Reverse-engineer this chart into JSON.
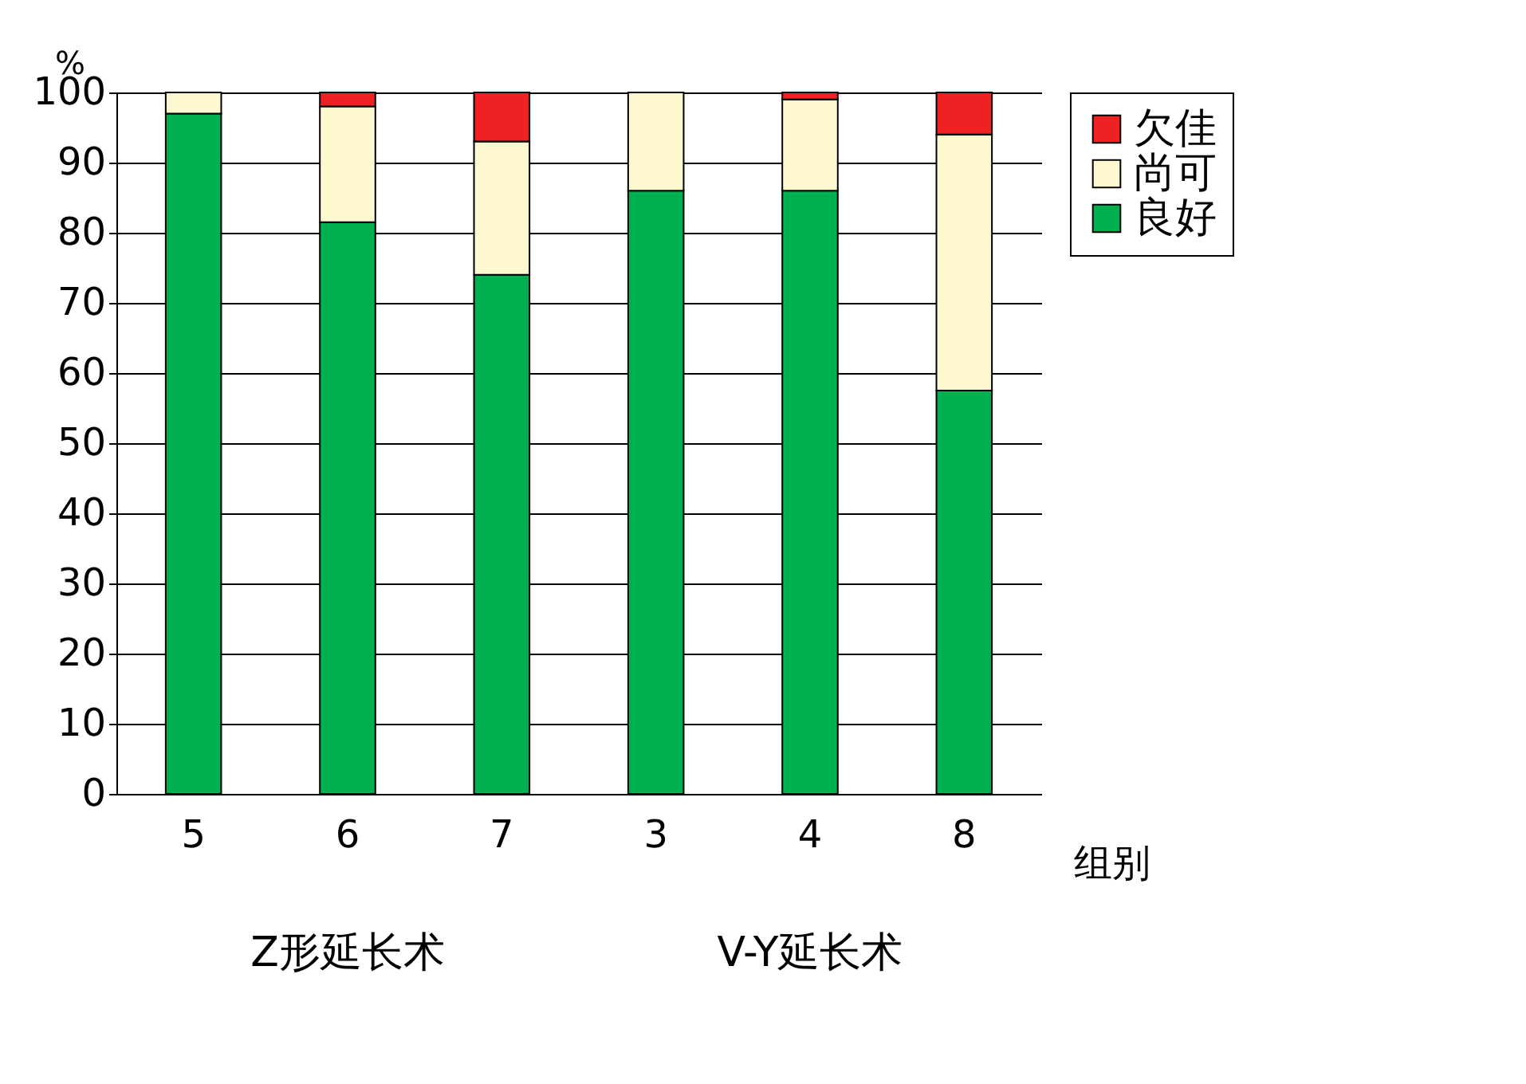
{
  "chart_data": {
    "type": "bar",
    "stacked": true,
    "ylabel": "%",
    "xlabel": "组别",
    "categories": [
      "5",
      "6",
      "7",
      "3",
      "4",
      "8"
    ],
    "series": [
      {
        "name": "良好",
        "color": "#00b050",
        "values": [
          97,
          81.5,
          74,
          86,
          86,
          57.5
        ]
      },
      {
        "name": "尚可",
        "color": "#fdf8cf",
        "values": [
          3,
          16.5,
          19,
          14,
          13,
          36.5
        ]
      },
      {
        "name": "欠佳",
        "color": "#ee2222",
        "values": [
          0,
          2,
          7,
          0,
          1,
          6
        ]
      }
    ],
    "ylim": [
      0,
      100
    ],
    "yticks": [
      0,
      10,
      20,
      30,
      40,
      50,
      60,
      70,
      80,
      90,
      100
    ],
    "grid": "y",
    "legend": "right",
    "annotations": [
      "Z形延长术",
      "V-Y延长术"
    ]
  }
}
